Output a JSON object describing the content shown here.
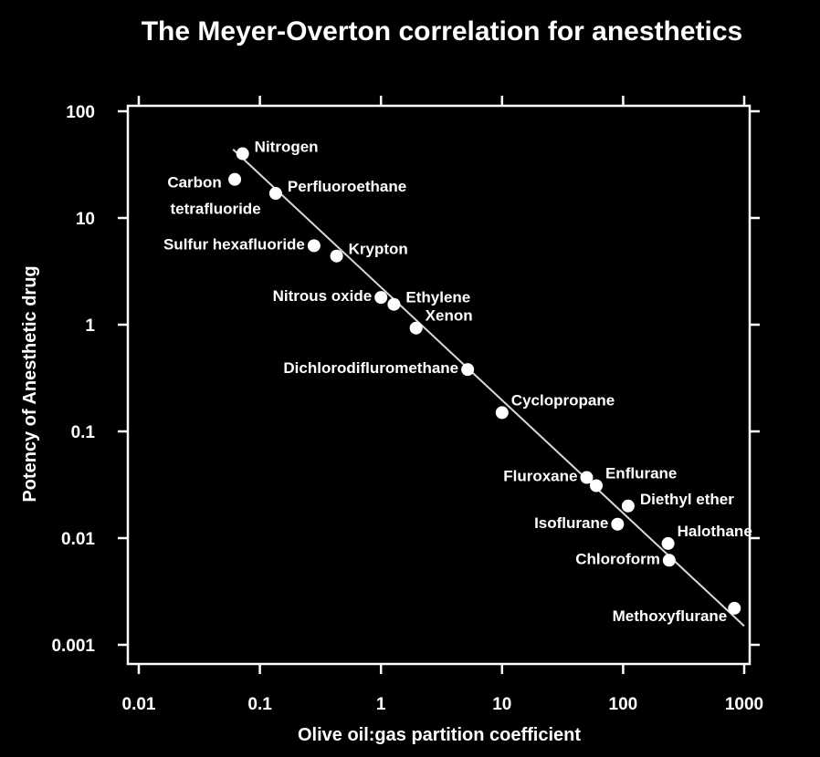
{
  "chart_data": {
    "type": "scatter",
    "title": "The Meyer-Overton correlation for anesthetics",
    "xlabel": "Olive oil:gas partition coefficient",
    "ylabel": "Potency of Anesthetic drug",
    "x_scale": "log",
    "y_scale": "log",
    "xlim": [
      0.01,
      1000
    ],
    "ylim": [
      0.001,
      100
    ],
    "x_ticks": [
      0.01,
      0.1,
      1,
      10,
      100,
      1000
    ],
    "x_tick_labels": [
      "0.01",
      "0.1",
      "1",
      "10",
      "100",
      "1000"
    ],
    "y_ticks": [
      0.001,
      0.01,
      0.1,
      1,
      10,
      100
    ],
    "y_tick_labels": [
      "0.001",
      "0.01",
      "0.1",
      "1",
      "10",
      "100"
    ],
    "grid": false,
    "legend": "none",
    "colors": {
      "background": "#000000",
      "foreground": "#ffffff",
      "fit_line": "#d9d9d9"
    },
    "trend_line": {
      "x": [
        0.06,
        1000
      ],
      "y": [
        44,
        0.0015
      ]
    },
    "points": [
      {
        "name": "Nitrogen",
        "x": 0.072,
        "y": 40,
        "label_lines": [
          "Nitrogen"
        ],
        "label_pos": "right"
      },
      {
        "name": "Carbon tetrafluoride",
        "x": 0.062,
        "y": 23,
        "label_lines": [
          "Carbon",
          "tetrafluoride"
        ],
        "label_pos": "left-stack"
      },
      {
        "name": "Perfluoroethane",
        "x": 0.135,
        "y": 17,
        "label_lines": [
          "Perfluoroethane"
        ],
        "label_pos": "right"
      },
      {
        "name": "Sulfur hexafluoride",
        "x": 0.28,
        "y": 5.5,
        "label_lines": [
          "Sulfur hexafluoride"
        ],
        "label_pos": "left"
      },
      {
        "name": "Krypton",
        "x": 0.43,
        "y": 4.4,
        "label_lines": [
          "Krypton"
        ],
        "label_pos": "right"
      },
      {
        "name": "Nitrous oxide",
        "x": 1.0,
        "y": 1.8,
        "label_lines": [
          "Nitrous oxide"
        ],
        "label_pos": "left"
      },
      {
        "name": "Ethylene",
        "x": 1.28,
        "y": 1.55,
        "label_lines": [
          "Ethylene"
        ],
        "label_pos": "right"
      },
      {
        "name": "Xenon",
        "x": 1.95,
        "y": 0.93,
        "label_lines": [
          "Xenon"
        ],
        "label_pos": "upper-right"
      },
      {
        "name": "Dichlorodifluromethane",
        "x": 5.2,
        "y": 0.38,
        "label_lines": [
          "Dichlorodifluromethane"
        ],
        "label_pos": "left"
      },
      {
        "name": "Cyclopropane",
        "x": 10.0,
        "y": 0.15,
        "label_lines": [
          "Cyclopropane"
        ],
        "label_pos": "upper-right"
      },
      {
        "name": "Fluroxane",
        "x": 50.0,
        "y": 0.037,
        "label_lines": [
          "Fluroxane"
        ],
        "label_pos": "left"
      },
      {
        "name": "Enflurane",
        "x": 60.0,
        "y": 0.031,
        "label_lines": [
          "Enflurane"
        ],
        "label_pos": "upper-right"
      },
      {
        "name": "Diethyl ether",
        "x": 110.0,
        "y": 0.02,
        "label_lines": [
          "Diethyl ether"
        ],
        "label_pos": "right"
      },
      {
        "name": "Isoflurane",
        "x": 90.0,
        "y": 0.0135,
        "label_lines": [
          "Isoflurane"
        ],
        "label_pos": "left"
      },
      {
        "name": "Halothane",
        "x": 235.0,
        "y": 0.0089,
        "label_lines": [
          "Halothane"
        ],
        "label_pos": "upper-right"
      },
      {
        "name": "Chloroform",
        "x": 240.0,
        "y": 0.0062,
        "label_lines": [
          "Chloroform"
        ],
        "label_pos": "left"
      },
      {
        "name": "Methoxyflurane",
        "x": 830.0,
        "y": 0.0022,
        "label_lines": [
          "Methoxyflurane"
        ],
        "label_pos": "lower-left"
      }
    ]
  }
}
